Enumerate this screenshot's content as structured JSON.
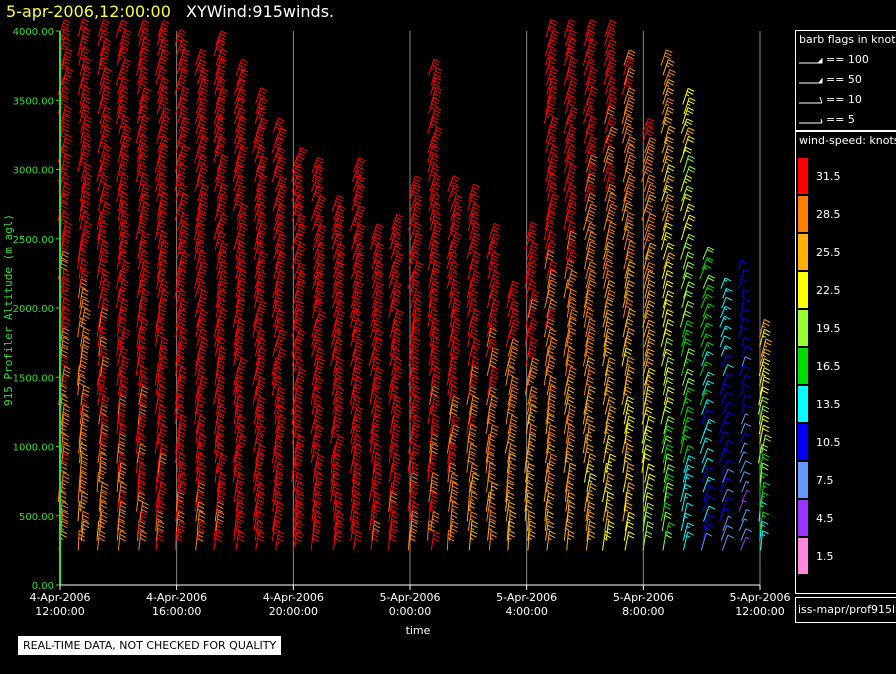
{
  "header": {
    "time": "5-apr-2006,12:00:00",
    "title": "XYWind:915winds."
  },
  "legend": {
    "flags_title": "barb flags in knots",
    "flags": [
      "== 100",
      "== 50",
      "== 10",
      "== 5"
    ],
    "speed_title": "wind-speed: knots",
    "speed_bins": [
      {
        "label": "31.5",
        "color": "#ff0000"
      },
      {
        "label": "28.5",
        "color": "#ff8000"
      },
      {
        "label": "25.5",
        "color": "#ffb000"
      },
      {
        "label": "22.5",
        "color": "#ffff00"
      },
      {
        "label": "19.5",
        "color": "#99ff33"
      },
      {
        "label": "16.5",
        "color": "#00dd00"
      },
      {
        "label": "13.5",
        "color": "#00ffff"
      },
      {
        "label": "10.5",
        "color": "#0000ff"
      },
      {
        "label": "7.5",
        "color": "#6699ff"
      },
      {
        "label": "4.5",
        "color": "#9933ff"
      },
      {
        "label": "1.5",
        "color": "#ff88dd"
      }
    ],
    "source": "iss-mapr/prof915l"
  },
  "note": "REAL-TIME DATA, NOT CHECKED FOR QUALITY",
  "chart_data": {
    "type": "scatter",
    "mark": "wind-barb",
    "xlabel": "time",
    "ylabel": "915 Profiler Altitude (m agl)",
    "x_ticks": [
      [
        "4-Apr-2006",
        "12:00:00"
      ],
      [
        "4-Apr-2006",
        "16:00:00"
      ],
      [
        "4-Apr-2006",
        "20:00:00"
      ],
      [
        "5-Apr-2006",
        "0:00:00"
      ],
      [
        "5-Apr-2006",
        "4:00:00"
      ],
      [
        "5-Apr-2006",
        "8:00:00"
      ],
      [
        "5-Apr-2006",
        "12:00:00"
      ]
    ],
    "xlim": [
      "2006-04-04T12:00",
      "2006-04-05T12:00"
    ],
    "y_ticks": [
      "0.00",
      "500.00",
      "1000.00",
      "1500.00",
      "2000.00",
      "2500.00",
      "3000.00",
      "3500.00",
      "4000.00"
    ],
    "ylim": [
      0,
      4000
    ],
    "grid": "vertical lines at x ticks",
    "speed_units": "knots",
    "profiles": [
      {
        "hour": 0.0,
        "top": 4000,
        "speed_low": 28,
        "speed_high": 34,
        "dir_low": 190,
        "dir_high": 240
      },
      {
        "hour": 1.0,
        "top": 4000,
        "speed_low": 27,
        "speed_high": 34,
        "dir_low": 190,
        "dir_high": 240
      },
      {
        "hour": 2.0,
        "top": 4000,
        "speed_low": 28,
        "speed_high": 35,
        "dir_low": 195,
        "dir_high": 245
      },
      {
        "hour": 3.0,
        "top": 4000,
        "speed_low": 29,
        "speed_high": 36,
        "dir_low": 195,
        "dir_high": 245
      },
      {
        "hour": 4.0,
        "top": 4000,
        "speed_low": 29,
        "speed_high": 36,
        "dir_low": 200,
        "dir_high": 245
      },
      {
        "hour": 5.0,
        "top": 4000,
        "speed_low": 30,
        "speed_high": 37,
        "dir_low": 200,
        "dir_high": 250
      },
      {
        "hour": 6.0,
        "top": 3900,
        "speed_low": 30,
        "speed_high": 38,
        "dir_low": 200,
        "dir_high": 250
      },
      {
        "hour": 7.0,
        "top": 3800,
        "speed_low": 30,
        "speed_high": 38,
        "dir_low": 205,
        "dir_high": 255
      },
      {
        "hour": 8.0,
        "top": 3900,
        "speed_low": 31,
        "speed_high": 39,
        "dir_low": 205,
        "dir_high": 255
      },
      {
        "hour": 9.0,
        "top": 3700,
        "speed_low": 31,
        "speed_high": 40,
        "dir_low": 205,
        "dir_high": 255
      },
      {
        "hour": 10.0,
        "top": 3500,
        "speed_low": 31,
        "speed_high": 40,
        "dir_low": 210,
        "dir_high": 255
      },
      {
        "hour": 11.0,
        "top": 3300,
        "speed_low": 32,
        "speed_high": 40,
        "dir_low": 210,
        "dir_high": 260
      },
      {
        "hour": 12.0,
        "top": 3100,
        "speed_low": 32,
        "speed_high": 40,
        "dir_low": 210,
        "dir_high": 260
      },
      {
        "hour": 13.0,
        "top": 3000,
        "speed_low": 32,
        "speed_high": 40,
        "dir_low": 210,
        "dir_high": 260
      },
      {
        "hour": 14.0,
        "top": 2700,
        "speed_low": 32,
        "speed_high": 40,
        "dir_low": 215,
        "dir_high": 260
      },
      {
        "hour": 15.0,
        "top": 3000,
        "speed_low": 31,
        "speed_high": 40,
        "dir_low": 210,
        "dir_high": 260
      },
      {
        "hour": 16.0,
        "top": 2500,
        "speed_low": 30,
        "speed_high": 38,
        "dir_low": 200,
        "dir_high": 255
      },
      {
        "hour": 17.0,
        "top": 2600,
        "speed_low": 30,
        "speed_high": 37,
        "dir_low": 200,
        "dir_high": 255
      },
      {
        "hour": 18.0,
        "top": 2900,
        "speed_low": 30,
        "speed_high": 36,
        "dir_low": 200,
        "dir_high": 250
      },
      {
        "hour": 19.0,
        "top": 3700,
        "speed_low": 29,
        "speed_high": 36,
        "dir_low": 200,
        "dir_high": 250
      },
      {
        "hour": 20.0,
        "top": 2900,
        "speed_low": 28,
        "speed_high": 35,
        "dir_low": 200,
        "dir_high": 250
      },
      {
        "hour": 21.0,
        "top": 2800,
        "speed_low": 27,
        "speed_high": 34,
        "dir_low": 200,
        "dir_high": 245
      },
      {
        "hour": 22.0,
        "top": 2500,
        "speed_low": 26,
        "speed_high": 33,
        "dir_low": 200,
        "dir_high": 245
      },
      {
        "hour": 23.0,
        "top": 2100,
        "speed_low": 25,
        "speed_high": 32,
        "dir_low": 200,
        "dir_high": 240
      },
      {
        "hour": 24.0,
        "top": 2500,
        "speed_low": 25,
        "speed_high": 32,
        "dir_low": 200,
        "dir_high": 240
      },
      {
        "hour": 25.0,
        "top": 4000,
        "speed_low": 26,
        "speed_high": 34,
        "dir_low": 205,
        "dir_high": 245
      },
      {
        "hour": 26.0,
        "top": 4000,
        "speed_low": 25,
        "speed_high": 34,
        "dir_low": 205,
        "dir_high": 245
      },
      {
        "hour": 27.0,
        "top": 4000,
        "speed_low": 24,
        "speed_high": 33,
        "dir_low": 210,
        "dir_high": 250
      },
      {
        "hour": 28.0,
        "top": 4000,
        "speed_low": 23,
        "speed_high": 32,
        "dir_low": 210,
        "dir_high": 250
      },
      {
        "hour": 29.0,
        "top": 3800,
        "speed_low": 22,
        "speed_high": 31,
        "dir_low": 210,
        "dir_high": 250
      },
      {
        "hour": 30.0,
        "top": 3300,
        "speed_low": 20,
        "speed_high": 30,
        "dir_low": 215,
        "dir_high": 255
      },
      {
        "hour": 31.0,
        "top": 3800,
        "speed_low": 17,
        "speed_high": 27,
        "dir_low": 220,
        "dir_high": 255
      },
      {
        "hour": 32.0,
        "top": 3500,
        "speed_low": 13,
        "speed_high": 24,
        "dir_low": 230,
        "dir_high": 260
      },
      {
        "hour": 33.0,
        "top": 2400,
        "speed_low": 10,
        "speed_high": 18,
        "dir_low": 250,
        "dir_high": 290
      },
      {
        "hour": 34.0,
        "top": 2200,
        "speed_low": 8,
        "speed_high": 14,
        "dir_low": 270,
        "dir_high": 320
      },
      {
        "hour": 35.0,
        "top": 2300,
        "speed_low": 6,
        "speed_high": 12,
        "dir_low": 290,
        "dir_high": 340
      },
      {
        "hour": 36.0,
        "top": 1800,
        "speed_low": 14,
        "speed_high": 26,
        "dir_low": 200,
        "dir_high": 240
      }
    ]
  }
}
